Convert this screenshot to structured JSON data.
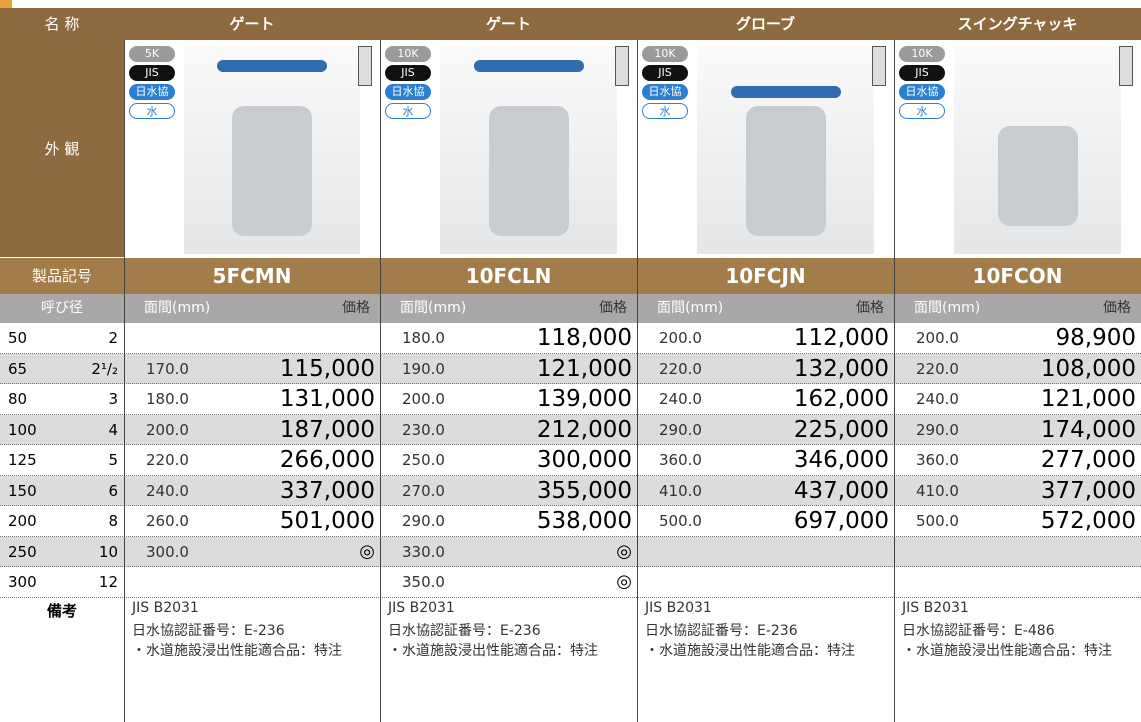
{
  "header": {
    "name_label": "名 称",
    "columns": [
      "ゲート",
      "ゲート",
      "グローブ",
      "スイングチャッキ"
    ]
  },
  "appearance": {
    "label": "外 観",
    "badges": [
      [
        "5K",
        "JIS",
        "日水協",
        "水"
      ],
      [
        "10K",
        "JIS",
        "日水協",
        "水"
      ],
      [
        "10K",
        "JIS",
        "日水協",
        "水"
      ],
      [
        "10K",
        "JIS",
        "日水協",
        "水"
      ]
    ]
  },
  "product": {
    "label": "製品記号",
    "codes": [
      "5FCMN",
      "10FCLN",
      "10FCJN",
      "10FCON"
    ]
  },
  "subheader": {
    "size": "呼び径",
    "length": "面間(mm)",
    "price": "価格"
  },
  "rows": [
    {
      "mm": "50",
      "inch": "2",
      "cells": [
        null,
        {
          "length": "180.0",
          "price": "118,000"
        },
        {
          "length": "200.0",
          "price": "112,000"
        },
        {
          "length": "200.0",
          "price": "98,900"
        }
      ]
    },
    {
      "mm": "65",
      "inch": "2¹/₂",
      "cells": [
        {
          "length": "170.0",
          "price": "115,000"
        },
        {
          "length": "190.0",
          "price": "121,000"
        },
        {
          "length": "220.0",
          "price": "132,000"
        },
        {
          "length": "220.0",
          "price": "108,000"
        }
      ]
    },
    {
      "mm": "80",
      "inch": "3",
      "cells": [
        {
          "length": "180.0",
          "price": "131,000"
        },
        {
          "length": "200.0",
          "price": "139,000"
        },
        {
          "length": "240.0",
          "price": "162,000"
        },
        {
          "length": "240.0",
          "price": "121,000"
        }
      ]
    },
    {
      "mm": "100",
      "inch": "4",
      "cells": [
        {
          "length": "200.0",
          "price": "187,000"
        },
        {
          "length": "230.0",
          "price": "212,000"
        },
        {
          "length": "290.0",
          "price": "225,000"
        },
        {
          "length": "290.0",
          "price": "174,000"
        }
      ]
    },
    {
      "mm": "125",
      "inch": "5",
      "cells": [
        {
          "length": "220.0",
          "price": "266,000"
        },
        {
          "length": "250.0",
          "price": "300,000"
        },
        {
          "length": "360.0",
          "price": "346,000"
        },
        {
          "length": "360.0",
          "price": "277,000"
        }
      ]
    },
    {
      "mm": "150",
      "inch": "6",
      "cells": [
        {
          "length": "240.0",
          "price": "337,000"
        },
        {
          "length": "270.0",
          "price": "355,000"
        },
        {
          "length": "410.0",
          "price": "437,000"
        },
        {
          "length": "410.0",
          "price": "377,000"
        }
      ]
    },
    {
      "mm": "200",
      "inch": "8",
      "cells": [
        {
          "length": "260.0",
          "price": "501,000"
        },
        {
          "length": "290.0",
          "price": "538,000"
        },
        {
          "length": "500.0",
          "price": "697,000"
        },
        {
          "length": "500.0",
          "price": "572,000"
        }
      ]
    },
    {
      "mm": "250",
      "inch": "10",
      "cells": [
        {
          "length": "300.0",
          "price": "◎"
        },
        {
          "length": "330.0",
          "price": "◎"
        },
        null,
        null
      ]
    },
    {
      "mm": "300",
      "inch": "12",
      "cells": [
        null,
        {
          "length": "350.0",
          "price": "◎"
        },
        null,
        null
      ]
    }
  ],
  "notes": {
    "label": "備考",
    "columns": [
      [
        "JIS B2031",
        "日水協認証番号：E-236",
        "・水道施設浸出性能適合品：特注"
      ],
      [
        "JIS B2031",
        "日水協認証番号：E-236",
        "・水道施設浸出性能適合品：特注"
      ],
      [
        "JIS B2031",
        "日水協認証番号：E-236",
        "・水道施設浸出性能適合品：特注"
      ],
      [
        "JIS B2031",
        "日水協認証番号：E-486",
        "・水道施設浸出性能適合品：特注"
      ]
    ]
  }
}
